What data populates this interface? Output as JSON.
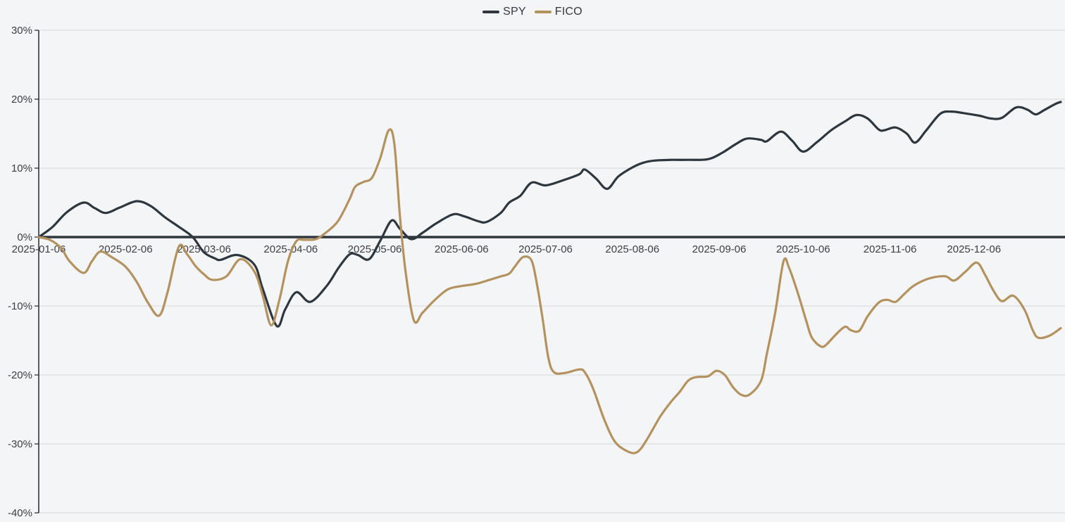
{
  "colors": {
    "background": "#f4f5f6",
    "grid": "#d8d9db",
    "axis": "#2e363e",
    "zero_line": "#2e363e",
    "tick_label": "#3b4045"
  },
  "chart_data": {
    "type": "line",
    "title": "",
    "grid": "horizontal",
    "legend": {
      "position": "top-center",
      "entries": [
        "SPY",
        "FICO"
      ]
    },
    "x_axis": {
      "kind": "time",
      "domain_days": [
        0,
        365
      ],
      "tick_labels": [
        "2025-01-06",
        "2025-02-06",
        "2025-03-06",
        "2025-04-06",
        "2025-05-06",
        "2025-06-06",
        "2025-07-06",
        "2025-08-06",
        "2025-09-06",
        "2025-10-06",
        "2025-11-06",
        "2025-12-06"
      ],
      "tick_day_offsets": [
        0,
        31,
        59,
        90,
        120,
        151,
        181,
        212,
        243,
        273,
        304,
        334
      ]
    },
    "y_axis": {
      "unit": "%",
      "range": [
        -40,
        30
      ],
      "tick_values": [
        30,
        20,
        10,
        0,
        -10,
        -20,
        -30,
        -40
      ],
      "tick_labels": [
        "30%",
        "20%",
        "10%",
        "0%",
        "-10%",
        "-20%",
        "-30%",
        "-40%"
      ]
    },
    "series": [
      {
        "name": "SPY",
        "color": "#2e363e",
        "points": [
          [
            0,
            0
          ],
          [
            5,
            1.5
          ],
          [
            10,
            3.6
          ],
          [
            16,
            5.0
          ],
          [
            20,
            4.2
          ],
          [
            24,
            3.5
          ],
          [
            29,
            4.3
          ],
          [
            35,
            5.2
          ],
          [
            40,
            4.5
          ],
          [
            45,
            2.9
          ],
          [
            50,
            1.5
          ],
          [
            55,
            0
          ],
          [
            59,
            -2.2
          ],
          [
            63,
            -3.1
          ],
          [
            65,
            -3.3
          ],
          [
            71,
            -2.6
          ],
          [
            77,
            -4.0
          ],
          [
            80,
            -7.5
          ],
          [
            85,
            -12.9
          ],
          [
            88,
            -10.5
          ],
          [
            92,
            -8.0
          ],
          [
            97,
            -9.4
          ],
          [
            103,
            -7.0
          ],
          [
            107,
            -4.5
          ],
          [
            111,
            -2.5
          ],
          [
            114,
            -2.6
          ],
          [
            118,
            -3.2
          ],
          [
            122,
            -0.5
          ],
          [
            126,
            2.4
          ],
          [
            129,
            1.2
          ],
          [
            133,
            -0.3
          ],
          [
            137,
            0.6
          ],
          [
            142,
            2.0
          ],
          [
            148,
            3.3
          ],
          [
            152,
            3.0
          ],
          [
            157,
            2.3
          ],
          [
            160,
            2.2
          ],
          [
            165,
            3.5
          ],
          [
            168,
            5.0
          ],
          [
            172,
            6.0
          ],
          [
            176,
            7.9
          ],
          [
            181,
            7.5
          ],
          [
            187,
            8.2
          ],
          [
            193,
            9.1
          ],
          [
            195,
            9.8
          ],
          [
            199,
            8.5
          ],
          [
            203,
            7.0
          ],
          [
            207,
            8.8
          ],
          [
            212,
            10.1
          ],
          [
            216,
            10.8
          ],
          [
            220,
            11.1
          ],
          [
            226,
            11.2
          ],
          [
            232,
            11.2
          ],
          [
            239,
            11.3
          ],
          [
            244,
            12.2
          ],
          [
            249,
            13.5
          ],
          [
            253,
            14.3
          ],
          [
            258,
            14.1
          ],
          [
            260,
            13.9
          ],
          [
            265,
            15.3
          ],
          [
            269,
            14.0
          ],
          [
            273,
            12.4
          ],
          [
            278,
            13.8
          ],
          [
            283,
            15.5
          ],
          [
            288,
            16.8
          ],
          [
            292,
            17.7
          ],
          [
            296,
            17.2
          ],
          [
            300,
            15.6
          ],
          [
            302,
            15.5
          ],
          [
            306,
            15.9
          ],
          [
            310,
            15.0
          ],
          [
            313,
            13.7
          ],
          [
            317,
            15.5
          ],
          [
            322,
            17.9
          ],
          [
            326,
            18.2
          ],
          [
            330,
            18.0
          ],
          [
            336,
            17.6
          ],
          [
            340,
            17.2
          ],
          [
            344,
            17.3
          ],
          [
            349,
            18.8
          ],
          [
            353,
            18.5
          ],
          [
            356,
            17.8
          ],
          [
            359,
            18.4
          ],
          [
            363,
            19.3
          ],
          [
            365,
            19.6
          ]
        ]
      },
      {
        "name": "FICO",
        "color": "#b3925f",
        "points": [
          [
            0,
            0
          ],
          [
            4,
            -0.4
          ],
          [
            8,
            -1.6
          ],
          [
            11,
            -3.5
          ],
          [
            16,
            -5.2
          ],
          [
            19,
            -3.5
          ],
          [
            22,
            -2.1
          ],
          [
            26,
            -2.9
          ],
          [
            31,
            -4.3
          ],
          [
            35,
            -6.5
          ],
          [
            39,
            -9.5
          ],
          [
            43,
            -11.4
          ],
          [
            46,
            -8.0
          ],
          [
            50,
            -1.4
          ],
          [
            53,
            -2.5
          ],
          [
            56,
            -4.2
          ],
          [
            59,
            -5.4
          ],
          [
            62,
            -6.2
          ],
          [
            67,
            -5.7
          ],
          [
            72,
            -3.2
          ],
          [
            77,
            -5.0
          ],
          [
            80,
            -8.5
          ],
          [
            83,
            -12.8
          ],
          [
            86,
            -9.0
          ],
          [
            89,
            -3.5
          ],
          [
            92,
            -0.6
          ],
          [
            95,
            -0.4
          ],
          [
            99,
            -0.3
          ],
          [
            103,
            0.8
          ],
          [
            107,
            2.4
          ],
          [
            111,
            5.5
          ],
          [
            113,
            7.3
          ],
          [
            116,
            8.0
          ],
          [
            119,
            8.6
          ],
          [
            122,
            11.5
          ],
          [
            125,
            15.5
          ],
          [
            127,
            13.5
          ],
          [
            129,
            3.0
          ],
          [
            131,
            -5.0
          ],
          [
            134,
            -12.1
          ],
          [
            137,
            -11.0
          ],
          [
            141,
            -9.3
          ],
          [
            146,
            -7.6
          ],
          [
            151,
            -7.1
          ],
          [
            156,
            -6.8
          ],
          [
            161,
            -6.2
          ],
          [
            165,
            -5.7
          ],
          [
            168,
            -5.3
          ],
          [
            170,
            -4.3
          ],
          [
            173,
            -2.9
          ],
          [
            176,
            -3.4
          ],
          [
            178,
            -7.0
          ],
          [
            180,
            -12.0
          ],
          [
            182,
            -17.5
          ],
          [
            184,
            -19.6
          ],
          [
            188,
            -19.7
          ],
          [
            193,
            -19.2
          ],
          [
            195,
            -19.6
          ],
          [
            198,
            -22.0
          ],
          [
            202,
            -26.5
          ],
          [
            206,
            -29.8
          ],
          [
            211,
            -31.2
          ],
          [
            214,
            -31.1
          ],
          [
            217,
            -29.5
          ],
          [
            222,
            -26.0
          ],
          [
            226,
            -23.8
          ],
          [
            229,
            -22.4
          ],
          [
            232,
            -20.8
          ],
          [
            235,
            -20.3
          ],
          [
            239,
            -20.2
          ],
          [
            242,
            -19.4
          ],
          [
            245,
            -20.0
          ],
          [
            248,
            -21.8
          ],
          [
            251,
            -22.9
          ],
          [
            254,
            -22.8
          ],
          [
            258,
            -20.8
          ],
          [
            260,
            -17.0
          ],
          [
            263,
            -11.0
          ],
          [
            266,
            -3.5
          ],
          [
            268,
            -4.5
          ],
          [
            271,
            -8.0
          ],
          [
            274,
            -12.0
          ],
          [
            276,
            -14.5
          ],
          [
            279,
            -15.8
          ],
          [
            281,
            -15.7
          ],
          [
            285,
            -14.0
          ],
          [
            288,
            -13.0
          ],
          [
            290,
            -13.5
          ],
          [
            293,
            -13.6
          ],
          [
            296,
            -11.5
          ],
          [
            300,
            -9.5
          ],
          [
            303,
            -9.1
          ],
          [
            306,
            -9.4
          ],
          [
            309,
            -8.3
          ],
          [
            312,
            -7.2
          ],
          [
            316,
            -6.3
          ],
          [
            320,
            -5.8
          ],
          [
            324,
            -5.7
          ],
          [
            327,
            -6.3
          ],
          [
            331,
            -5.0
          ],
          [
            335,
            -3.7
          ],
          [
            338,
            -5.5
          ],
          [
            341,
            -7.8
          ],
          [
            344,
            -9.3
          ],
          [
            348,
            -8.5
          ],
          [
            352,
            -10.5
          ],
          [
            355,
            -13.5
          ],
          [
            357,
            -14.6
          ],
          [
            361,
            -14.3
          ],
          [
            365,
            -13.2
          ]
        ]
      }
    ]
  }
}
